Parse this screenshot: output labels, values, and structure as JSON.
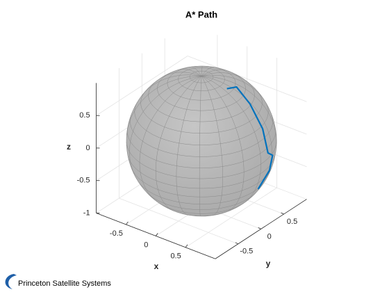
{
  "chart_data": {
    "type": "line3d",
    "title": "A* Path",
    "xlabel": "x",
    "ylabel": "y",
    "zlabel": "z",
    "xlim": [
      -1,
      1
    ],
    "ylim": [
      -1,
      1
    ],
    "zlim": [
      -1,
      1
    ],
    "xticks": [
      -0.5,
      0,
      0.5
    ],
    "yticks": [
      -0.5,
      0,
      0.5
    ],
    "zticks": [
      -1,
      -0.5,
      0,
      0.5
    ],
    "grid": true,
    "series": [
      {
        "color": "#0072bd",
        "x": [
          0.39,
          0.42,
          0.67,
          0.89,
          0.98,
          0.95,
          0.92,
          0.86
        ],
        "y": [
          0.05,
          0.22,
          0.19,
          0.18,
          0.18,
          0.32,
          0.29,
          0.12
        ],
        "z": [
          0.92,
          0.88,
          0.72,
          0.42,
          0.08,
          -0.03,
          -0.26,
          -0.49
        ]
      }
    ]
  },
  "logo_text": "Princeton Satellite Systems"
}
